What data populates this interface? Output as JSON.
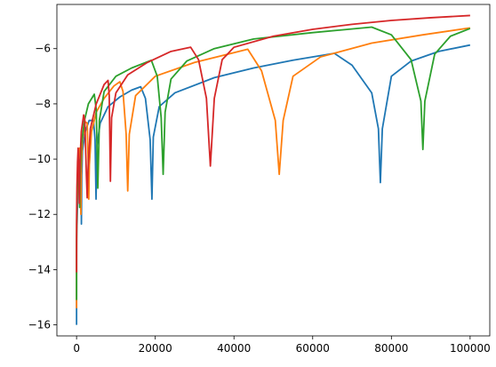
{
  "chart_data": {
    "type": "line",
    "title": "",
    "xlabel": "",
    "ylabel": "",
    "xlim": [
      -5000,
      105000
    ],
    "ylim": [
      -16.4,
      -4.4
    ],
    "x_ticks": [
      0,
      20000,
      40000,
      60000,
      80000,
      100000
    ],
    "x_tick_labels": [
      "0",
      "20000",
      "40000",
      "60000",
      "80000",
      "100000"
    ],
    "y_ticks": [
      -16,
      -14,
      -12,
      -10,
      -8,
      -6
    ],
    "y_tick_labels": [
      "−16",
      "−14",
      "−12",
      "−10",
      "−8",
      "−6"
    ],
    "grid": false,
    "legend": "none",
    "series": [
      {
        "color": "#1f77b4",
        "points": [
          [
            0,
            -16
          ],
          [
            5,
            -13.7
          ],
          [
            20,
            -12.9
          ],
          [
            60,
            -12.6
          ],
          [
            150,
            -12.2
          ],
          [
            300,
            -11.3
          ],
          [
            600,
            -10.4
          ],
          [
            1000,
            -9.8
          ],
          [
            1150,
            -10.4
          ],
          [
            1230,
            -12.35
          ],
          [
            1320,
            -10.6
          ],
          [
            1500,
            -9.7
          ],
          [
            2200,
            -9.0
          ],
          [
            3200,
            -8.6
          ],
          [
            4300,
            -8.6
          ],
          [
            4700,
            -9.3
          ],
          [
            4950,
            -11.45
          ],
          [
            5200,
            -9.5
          ],
          [
            6000,
            -8.7
          ],
          [
            8000,
            -8.1
          ],
          [
            11000,
            -7.75
          ],
          [
            14000,
            -7.5
          ],
          [
            16300,
            -7.38
          ],
          [
            17500,
            -7.8
          ],
          [
            18700,
            -9.3
          ],
          [
            19150,
            -11.45
          ],
          [
            19500,
            -9.2
          ],
          [
            21000,
            -8.1
          ],
          [
            25000,
            -7.6
          ],
          [
            35000,
            -7.05
          ],
          [
            45000,
            -6.7
          ],
          [
            55000,
            -6.42
          ],
          [
            65500,
            -6.17
          ],
          [
            70000,
            -6.6
          ],
          [
            75000,
            -7.6
          ],
          [
            76700,
            -8.9
          ],
          [
            77200,
            -10.85
          ],
          [
            77700,
            -8.9
          ],
          [
            80000,
            -7.0
          ],
          [
            85000,
            -6.45
          ],
          [
            92000,
            -6.1
          ],
          [
            100000,
            -5.87
          ]
        ]
      },
      {
        "color": "#ff7f0e",
        "points": [
          [
            0,
            -15.4
          ],
          [
            5,
            -13.4
          ],
          [
            30,
            -12.4
          ],
          [
            100,
            -11.8
          ],
          [
            250,
            -10.8
          ],
          [
            500,
            -10.0
          ],
          [
            800,
            -9.6
          ],
          [
            1000,
            -10.2
          ],
          [
            1100,
            -12.0
          ],
          [
            1200,
            -10.2
          ],
          [
            1500,
            -9.3
          ],
          [
            2200,
            -8.65
          ],
          [
            2700,
            -8.7
          ],
          [
            3000,
            -10.4
          ],
          [
            3100,
            -11.45
          ],
          [
            3250,
            -10.2
          ],
          [
            3800,
            -9.0
          ],
          [
            5000,
            -8.3
          ],
          [
            7000,
            -7.8
          ],
          [
            9500,
            -7.35
          ],
          [
            11000,
            -7.2
          ],
          [
            11800,
            -7.55
          ],
          [
            12600,
            -9.1
          ],
          [
            13000,
            -11.15
          ],
          [
            13400,
            -9.1
          ],
          [
            15000,
            -7.7
          ],
          [
            20000,
            -7.0
          ],
          [
            30000,
            -6.5
          ],
          [
            43500,
            -6.02
          ],
          [
            47000,
            -6.8
          ],
          [
            50500,
            -8.6
          ],
          [
            51500,
            -10.55
          ],
          [
            52500,
            -8.6
          ],
          [
            55000,
            -7.0
          ],
          [
            62000,
            -6.3
          ],
          [
            75000,
            -5.8
          ],
          [
            88000,
            -5.5
          ],
          [
            100000,
            -5.25
          ]
        ]
      },
      {
        "color": "#2ca02c",
        "points": [
          [
            0,
            -15.1
          ],
          [
            5,
            -13.1
          ],
          [
            30,
            -12.2
          ],
          [
            100,
            -11.5
          ],
          [
            300,
            -10.5
          ],
          [
            500,
            -10.0
          ],
          [
            700,
            -11.0
          ],
          [
            800,
            -11.75
          ],
          [
            900,
            -10.5
          ],
          [
            1200,
            -9.5
          ],
          [
            2000,
            -8.6
          ],
          [
            3000,
            -8.0
          ],
          [
            4500,
            -7.65
          ],
          [
            5000,
            -8.2
          ],
          [
            5400,
            -11.05
          ],
          [
            5800,
            -8.6
          ],
          [
            7000,
            -7.55
          ],
          [
            10000,
            -7.0
          ],
          [
            14000,
            -6.7
          ],
          [
            19000,
            -6.42
          ],
          [
            20500,
            -7.0
          ],
          [
            21500,
            -8.5
          ],
          [
            22000,
            -10.55
          ],
          [
            22500,
            -8.3
          ],
          [
            24000,
            -7.1
          ],
          [
            28000,
            -6.45
          ],
          [
            35000,
            -6.0
          ],
          [
            45000,
            -5.65
          ],
          [
            60000,
            -5.42
          ],
          [
            75000,
            -5.22
          ],
          [
            80000,
            -5.5
          ],
          [
            85000,
            -6.4
          ],
          [
            87500,
            -7.9
          ],
          [
            88000,
            -9.65
          ],
          [
            88500,
            -7.9
          ],
          [
            91000,
            -6.2
          ],
          [
            95000,
            -5.55
          ],
          [
            100000,
            -5.27
          ]
        ]
      },
      {
        "color": "#d62728",
        "points": [
          [
            0,
            -14.1
          ],
          [
            5,
            -12.8
          ],
          [
            30,
            -11.9
          ],
          [
            100,
            -11.0
          ],
          [
            250,
            -10.1
          ],
          [
            400,
            -9.6
          ],
          [
            600,
            -10.8
          ],
          [
            700,
            -11.6
          ],
          [
            800,
            -10.4
          ],
          [
            1200,
            -9.0
          ],
          [
            1800,
            -8.4
          ],
          [
            2100,
            -8.6
          ],
          [
            2500,
            -10.6
          ],
          [
            2700,
            -11.4
          ],
          [
            2900,
            -10.4
          ],
          [
            3500,
            -8.9
          ],
          [
            5000,
            -8.0
          ],
          [
            7000,
            -7.3
          ],
          [
            8000,
            -7.15
          ],
          [
            8300,
            -7.7
          ],
          [
            8600,
            -10.8
          ],
          [
            8900,
            -8.5
          ],
          [
            10000,
            -7.6
          ],
          [
            13000,
            -6.95
          ],
          [
            18000,
            -6.5
          ],
          [
            24000,
            -6.1
          ],
          [
            29000,
            -5.95
          ],
          [
            31000,
            -6.4
          ],
          [
            33000,
            -7.8
          ],
          [
            34000,
            -10.25
          ],
          [
            35000,
            -7.8
          ],
          [
            37000,
            -6.4
          ],
          [
            40000,
            -5.95
          ],
          [
            50000,
            -5.55
          ],
          [
            60000,
            -5.3
          ],
          [
            70000,
            -5.12
          ],
          [
            80000,
            -4.98
          ],
          [
            90000,
            -4.88
          ],
          [
            100000,
            -4.8
          ]
        ]
      }
    ]
  }
}
